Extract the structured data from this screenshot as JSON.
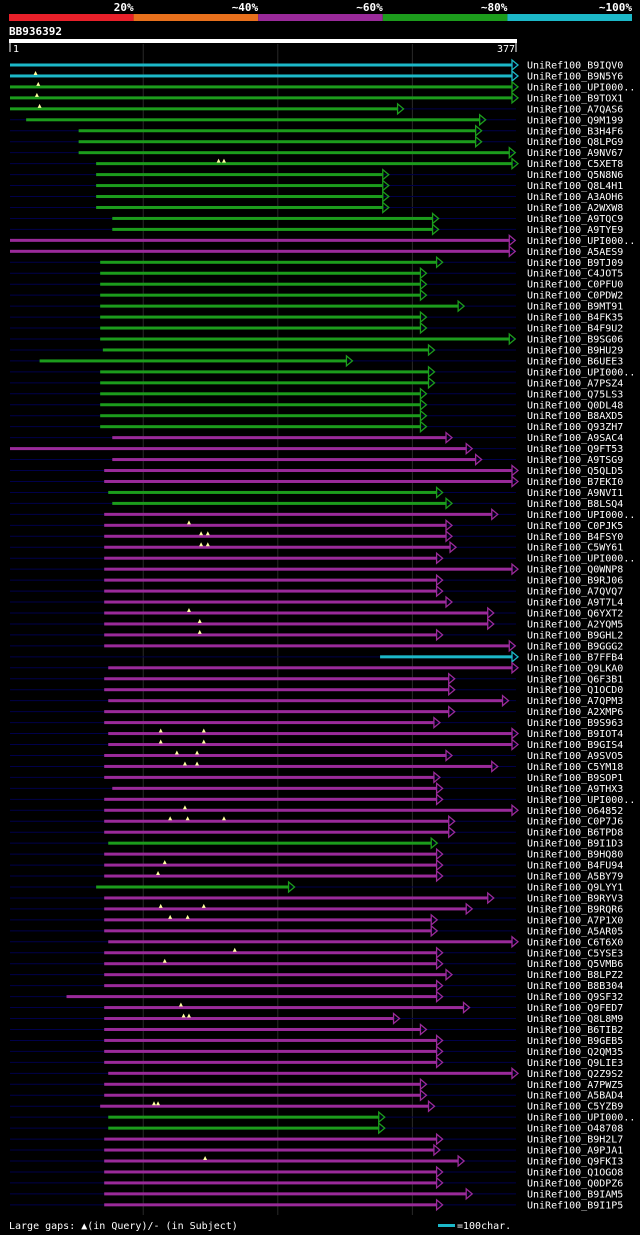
{
  "chart_data": {
    "type": "alignment-overview",
    "query_id": "BB936392",
    "query_start": "1",
    "query_end": "377",
    "query_length": 377,
    "identity_legend": [
      {
        "label": "20%",
        "color": "#e8202a"
      },
      {
        "label": "~40%",
        "color": "#e8701c"
      },
      {
        "label": "~60%",
        "color": "#9a2a9a"
      },
      {
        "label": "~80%",
        "color": "#1c9c1c"
      },
      {
        "label": "~100%",
        "color": "#1cb8c8"
      }
    ],
    "footer_text": "Large gaps: ▲(in Query)/- (in Subject)",
    "scale_text": "=100char.",
    "colors": {
      "bg": "#000000",
      "grid": "#2a2a2a",
      "neutral": "#00004a",
      "mask": "#00004a",
      "gap": "#ffffa0"
    },
    "hits": [
      {
        "name": "UniRef100_B9IQV0",
        "start": 1,
        "end": 377,
        "cls": 4,
        "ins": []
      },
      {
        "name": "UniRef100_B9N5Y6",
        "start": 1,
        "end": 377,
        "cls": 4,
        "ins": [
          20
        ]
      },
      {
        "name": "UniRef100_UPI000..",
        "start": 1,
        "end": 377,
        "cls": 3,
        "ins": [
          22
        ]
      },
      {
        "name": "UniRef100_B9TOX1",
        "start": 1,
        "end": 377,
        "cls": 3,
        "ins": [
          21
        ]
      },
      {
        "name": "UniRef100_A7QAS6",
        "start": 1,
        "end": 289,
        "cls": 3,
        "ins": [
          23
        ]
      },
      {
        "name": "UniRef100_Q9M199",
        "start": 13,
        "end": 350,
        "cls": 3,
        "ins": []
      },
      {
        "name": "UniRef100_B3H4F6",
        "start": 52,
        "end": 347,
        "cls": 3,
        "ins": []
      },
      {
        "name": "UniRef100_Q8LPG9",
        "start": 52,
        "end": 347,
        "cls": 3,
        "ins": []
      },
      {
        "name": "UniRef100_A9NV67",
        "start": 52,
        "end": 372,
        "cls": 3,
        "ins": []
      },
      {
        "name": "UniRef100_C5XET8",
        "start": 65,
        "end": 377,
        "cls": 3,
        "ins": [
          156,
          160
        ]
      },
      {
        "name": "UniRef100_Q5N8N6",
        "start": 65,
        "end": 278,
        "cls": 3,
        "ins": []
      },
      {
        "name": "UniRef100_Q8L4H1",
        "start": 65,
        "end": 278,
        "cls": 3,
        "ins": []
      },
      {
        "name": "UniRef100_A3AOH6",
        "start": 65,
        "end": 278,
        "cls": 3,
        "ins": []
      },
      {
        "name": "UniRef100_A2WXW8",
        "start": 65,
        "end": 278,
        "cls": 3,
        "ins": []
      },
      {
        "name": "UniRef100_A9TQC9",
        "start": 77,
        "end": 315,
        "cls": 3,
        "ins": []
      },
      {
        "name": "UniRef100_A9TYE9",
        "start": 77,
        "end": 315,
        "cls": 3,
        "ins": []
      },
      {
        "name": "UniRef100_UPI000..",
        "start": 1,
        "end": 372,
        "cls": 2,
        "ins": []
      },
      {
        "name": "UniRef100_A5AES9",
        "start": 1,
        "end": 372,
        "cls": 2,
        "ins": []
      },
      {
        "name": "UniRef100_B9TJ09",
        "start": 68,
        "end": 318,
        "cls": 3,
        "ins": []
      },
      {
        "name": "UniRef100_C4JOT5",
        "start": 68,
        "end": 306,
        "cls": 3,
        "ins": []
      },
      {
        "name": "UniRef100_C0PFU0",
        "start": 68,
        "end": 306,
        "cls": 3,
        "ins": []
      },
      {
        "name": "UniRef100_C0PDW2",
        "start": 68,
        "end": 306,
        "cls": 3,
        "ins": []
      },
      {
        "name": "UniRef100_B9MT91",
        "start": 68,
        "end": 334,
        "cls": 3,
        "ins": []
      },
      {
        "name": "UniRef100_B4FK35",
        "start": 68,
        "end": 306,
        "cls": 3,
        "ins": []
      },
      {
        "name": "UniRef100_B4F9U2",
        "start": 68,
        "end": 306,
        "cls": 3,
        "ins": []
      },
      {
        "name": "UniRef100_B9SG06",
        "start": 68,
        "end": 372,
        "cls": 3,
        "ins": []
      },
      {
        "name": "UniRef100_B9HU29",
        "start": 70,
        "end": 312,
        "cls": 3,
        "ins": []
      },
      {
        "name": "UniRef100_B6UEE3",
        "start": 23,
        "end": 251,
        "cls": 3,
        "ins": []
      },
      {
        "name": "UniRef100_UPI000..",
        "start": 68,
        "end": 312,
        "cls": 3,
        "ins": []
      },
      {
        "name": "UniRef100_A7PSZ4",
        "start": 68,
        "end": 312,
        "cls": 3,
        "ins": []
      },
      {
        "name": "UniRef100_Q75LS3",
        "start": 68,
        "end": 306,
        "cls": 3,
        "ins": []
      },
      {
        "name": "UniRef100_Q0DL48",
        "start": 68,
        "end": 306,
        "cls": 3,
        "ins": []
      },
      {
        "name": "UniRef100_B8AXD5",
        "start": 68,
        "end": 306,
        "cls": 3,
        "ins": []
      },
      {
        "name": "UniRef100_Q93ZH7",
        "start": 68,
        "end": 306,
        "cls": 3,
        "ins": []
      },
      {
        "name": "UniRef100_A9SAC4",
        "start": 77,
        "end": 325,
        "cls": 2,
        "ins": []
      },
      {
        "name": "UniRef100_Q9FT53",
        "start": 1,
        "end": 340,
        "cls": 2,
        "ins": []
      },
      {
        "name": "UniRef100_A9TSG9",
        "start": 77,
        "end": 347,
        "cls": 2,
        "ins": []
      },
      {
        "name": "UniRef100_Q5QLD5",
        "start": 71,
        "end": 377,
        "cls": 2,
        "ins": []
      },
      {
        "name": "UniRef100_B7EKI0",
        "start": 71,
        "end": 377,
        "cls": 2,
        "ins": []
      },
      {
        "name": "UniRef100_A9NVI1",
        "start": 74,
        "end": 318,
        "cls": 3,
        "ins": []
      },
      {
        "name": "UniRef100_B8LSQ4",
        "start": 77,
        "end": 325,
        "cls": 3,
        "ins": []
      },
      {
        "name": "UniRef100_UPI000..",
        "start": 71,
        "end": 359,
        "cls": 2,
        "ins": []
      },
      {
        "name": "UniRef100_C0PJK5",
        "start": 71,
        "end": 325,
        "cls": 2,
        "ins": [
          134
        ]
      },
      {
        "name": "UniRef100_B4FSY0",
        "start": 71,
        "end": 325,
        "cls": 2,
        "ins": [
          143,
          148
        ]
      },
      {
        "name": "UniRef100_C5WY61",
        "start": 71,
        "end": 328,
        "cls": 2,
        "ins": [
          143,
          148
        ]
      },
      {
        "name": "UniRef100_UPI000..",
        "start": 71,
        "end": 318,
        "cls": 2,
        "ins": []
      },
      {
        "name": "UniRef100_Q0WNP8",
        "start": 71,
        "end": 377,
        "cls": 2,
        "ins": []
      },
      {
        "name": "UniRef100_B9RJ06",
        "start": 71,
        "end": 318,
        "cls": 2,
        "ins": []
      },
      {
        "name": "UniRef100_A7QVQ7",
        "start": 71,
        "end": 318,
        "cls": 2,
        "ins": []
      },
      {
        "name": "UniRef100_A9T7L4",
        "start": 71,
        "end": 325,
        "cls": 2,
        "ins": []
      },
      {
        "name": "UniRef100_Q6YXT2",
        "start": 71,
        "end": 356,
        "cls": 2,
        "ins": [
          134
        ]
      },
      {
        "name": "UniRef100_A2YQM5",
        "start": 71,
        "end": 356,
        "cls": 2,
        "ins": [
          142
        ]
      },
      {
        "name": "UniRef100_B9GHL2",
        "start": 71,
        "end": 318,
        "cls": 2,
        "ins": [
          142
        ]
      },
      {
        "name": "UniRef100_B9GGG2",
        "start": 71,
        "end": 372,
        "cls": 2,
        "ins": []
      },
      {
        "name": "UniRef100_B7FFB4",
        "start": 276,
        "end": 377,
        "cls": 4,
        "ins": []
      },
      {
        "name": "UniRef100_Q9LKA0",
        "start": 74,
        "end": 377,
        "cls": 2,
        "ins": []
      },
      {
        "name": "UniRef100_Q6F3B1",
        "start": 71,
        "end": 327,
        "cls": 2,
        "ins": []
      },
      {
        "name": "UniRef100_Q1OCD0",
        "start": 71,
        "end": 327,
        "cls": 2,
        "ins": []
      },
      {
        "name": "UniRef100_A7QPM3",
        "start": 74,
        "end": 367,
        "cls": 2,
        "ins": []
      },
      {
        "name": "UniRef100_A2XMP6",
        "start": 71,
        "end": 327,
        "cls": 2,
        "ins": []
      },
      {
        "name": "UniRef100_B9S963",
        "start": 71,
        "end": 316,
        "cls": 2,
        "ins": []
      },
      {
        "name": "UniRef100_B9IOT4",
        "start": 74,
        "end": 377,
        "cls": 2,
        "ins": [
          113,
          145
        ]
      },
      {
        "name": "UniRef100_B9GIS4",
        "start": 74,
        "end": 377,
        "cls": 2,
        "ins": [
          113,
          145
        ]
      },
      {
        "name": "UniRef100_A9SVO5",
        "start": 71,
        "end": 325,
        "cls": 2,
        "ins": [
          125,
          140
        ]
      },
      {
        "name": "UniRef100_C5YM18",
        "start": 71,
        "end": 359,
        "cls": 2,
        "ins": [
          131,
          140
        ]
      },
      {
        "name": "UniRef100_B9SOP1",
        "start": 71,
        "end": 316,
        "cls": 2,
        "ins": []
      },
      {
        "name": "UniRef100_A9THX3",
        "start": 77,
        "end": 318,
        "cls": 2,
        "ins": []
      },
      {
        "name": "UniRef100_UPI000..",
        "start": 71,
        "end": 318,
        "cls": 2,
        "ins": []
      },
      {
        "name": "UniRef100_O64852",
        "start": 71,
        "end": 380,
        "cls": 2,
        "ins": [
          131
        ]
      },
      {
        "name": "UniRef100_C0P7J6",
        "start": 71,
        "end": 327,
        "cls": 2,
        "ins": [
          120,
          133,
          160
        ]
      },
      {
        "name": "UniRef100_B6TPD8",
        "start": 71,
        "end": 327,
        "cls": 2,
        "ins": []
      },
      {
        "name": "UniRef100_B9I1D3",
        "start": 74,
        "end": 314,
        "cls": 3,
        "ins": []
      },
      {
        "name": "UniRef100_B9HQ80",
        "start": 71,
        "end": 318,
        "cls": 2,
        "ins": []
      },
      {
        "name": "UniRef100_B4FU94",
        "start": 71,
        "end": 318,
        "cls": 2,
        "ins": [
          116
        ]
      },
      {
        "name": "UniRef100_A5BY79",
        "start": 71,
        "end": 318,
        "cls": 2,
        "ins": [
          111
        ]
      },
      {
        "name": "UniRef100_Q9LYY1",
        "start": 65,
        "end": 208,
        "cls": 3,
        "ins": []
      },
      {
        "name": "UniRef100_B9RYV3",
        "start": 71,
        "end": 356,
        "cls": 2,
        "ins": []
      },
      {
        "name": "UniRef100_B9RQR6",
        "start": 71,
        "end": 340,
        "cls": 2,
        "ins": [
          113,
          145
        ]
      },
      {
        "name": "UniRef100_A7P1X0",
        "start": 71,
        "end": 314,
        "cls": 2,
        "ins": [
          120,
          133
        ]
      },
      {
        "name": "UniRef100_A5AR05",
        "start": 71,
        "end": 314,
        "cls": 2,
        "ins": []
      },
      {
        "name": "UniRef100_C6T6X0",
        "start": 74,
        "end": 377,
        "cls": 2,
        "ins": []
      },
      {
        "name": "UniRef100_C5YSE3",
        "start": 71,
        "end": 318,
        "cls": 2,
        "ins": [
          168
        ]
      },
      {
        "name": "UniRef100_Q5VMB6",
        "start": 71,
        "end": 318,
        "cls": 2,
        "ins": [
          116
        ]
      },
      {
        "name": "UniRef100_B8LPZ2",
        "start": 71,
        "end": 325,
        "cls": 2,
        "ins": []
      },
      {
        "name": "UniRef100_B8B304",
        "start": 71,
        "end": 318,
        "cls": 2,
        "ins": []
      },
      {
        "name": "UniRef100_Q9SF32",
        "start": 43,
        "end": 318,
        "cls": 2,
        "ins": []
      },
      {
        "name": "UniRef100_Q9FED7",
        "start": 71,
        "end": 338,
        "cls": 2,
        "ins": [
          128
        ]
      },
      {
        "name": "UniRef100_Q8L8M9",
        "start": 71,
        "end": 286,
        "cls": 2,
        "ins": [
          130,
          134
        ]
      },
      {
        "name": "UniRef100_B6TIB2",
        "start": 71,
        "end": 306,
        "cls": 2,
        "ins": []
      },
      {
        "name": "UniRef100_B9GEB5",
        "start": 71,
        "end": 318,
        "cls": 2,
        "ins": []
      },
      {
        "name": "UniRef100_Q2QM35",
        "start": 71,
        "end": 318,
        "cls": 2,
        "ins": []
      },
      {
        "name": "UniRef100_Q9LIE3",
        "start": 71,
        "end": 318,
        "cls": 2,
        "ins": []
      },
      {
        "name": "UniRef100_Q2Z9S2",
        "start": 74,
        "end": 377,
        "cls": 2,
        "ins": []
      },
      {
        "name": "UniRef100_A7PWZ5",
        "start": 71,
        "end": 306,
        "cls": 2,
        "ins": []
      },
      {
        "name": "UniRef100_A5BAD4",
        "start": 71,
        "end": 306,
        "cls": 2,
        "ins": []
      },
      {
        "name": "UniRef100_C5YZB9",
        "start": 68,
        "end": 312,
        "cls": 2,
        "ins": [
          108,
          111
        ]
      },
      {
        "name": "UniRef100_UPI000..",
        "start": 74,
        "end": 275,
        "cls": 3,
        "ins": []
      },
      {
        "name": "UniRef100_O48708",
        "start": 74,
        "end": 275,
        "cls": 3,
        "ins": []
      },
      {
        "name": "UniRef100_B9H2L7",
        "start": 71,
        "end": 318,
        "cls": 2,
        "ins": []
      },
      {
        "name": "UniRef100_A9PJA1",
        "start": 71,
        "end": 316,
        "cls": 2,
        "ins": []
      },
      {
        "name": "UniRef100_Q9FKI3",
        "start": 71,
        "end": 334,
        "cls": 2,
        "ins": [
          146
        ]
      },
      {
        "name": "UniRef100_Q1OGO8",
        "start": 71,
        "end": 318,
        "cls": 2,
        "ins": []
      },
      {
        "name": "UniRef100_Q0DPZ6",
        "start": 71,
        "end": 318,
        "cls": 2,
        "ins": []
      },
      {
        "name": "UniRef100_B9IAM5",
        "start": 71,
        "end": 340,
        "cls": 2,
        "ins": []
      },
      {
        "name": "UniRef100_B9I1P5",
        "start": 71,
        "end": 318,
        "cls": 2,
        "ins": []
      }
    ]
  }
}
